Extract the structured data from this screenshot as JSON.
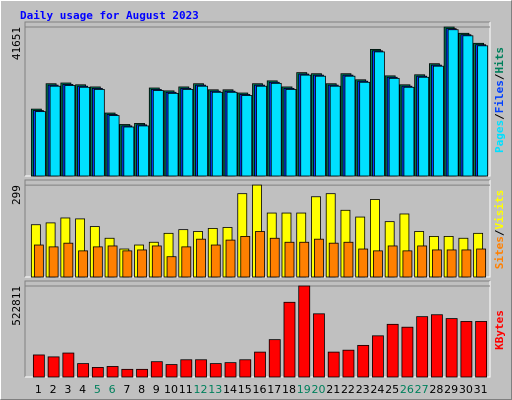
{
  "legend_separator": "/",
  "chart_data": [
    {
      "type": "bar",
      "title": "Daily usage for August 2023",
      "title_color": "#0000ff",
      "ylim": [
        0,
        42500
      ],
      "yticks": [
        41651
      ],
      "series": [
        {
          "name": "Hits",
          "color": "#00805c",
          "values": [
            18700,
            25800,
            26000,
            25500,
            24900,
            17600,
            14400,
            14700,
            24600,
            23800,
            24900,
            25800,
            24100,
            24100,
            23200,
            25800,
            26600,
            24900,
            28900,
            28600,
            25800,
            28600,
            26900,
            35400,
            28000,
            25500,
            28300,
            31400,
            41651,
            39900,
            37100
          ]
        },
        {
          "name": "Files",
          "color": "#0040ff",
          "values": [
            18300,
            25400,
            25600,
            25100,
            24500,
            17200,
            14000,
            14300,
            24200,
            23400,
            24500,
            25400,
            23700,
            23700,
            22800,
            25400,
            26200,
            24500,
            28500,
            28200,
            25400,
            28200,
            26500,
            35000,
            27600,
            25100,
            27900,
            31000,
            41200,
            39500,
            36700
          ]
        },
        {
          "name": "Pages",
          "color": "#00e0ff",
          "values": [
            18000,
            25100,
            25300,
            24800,
            24200,
            16900,
            13700,
            14000,
            23900,
            23100,
            24200,
            25100,
            23400,
            23400,
            22500,
            25100,
            25900,
            24200,
            28200,
            27900,
            25100,
            27900,
            26200,
            34700,
            27300,
            24800,
            27600,
            30700,
            40900,
            39200,
            36400
          ]
        }
      ]
    },
    {
      "type": "bar",
      "ylim": [
        0,
        309
      ],
      "yticks": [
        299
      ],
      "series": [
        {
          "name": "Visits",
          "color": "#ffff00",
          "values": [
            170,
            176,
            192,
            189,
            164,
            126,
            91,
            104,
            113,
            142,
            154,
            148,
            158,
            161,
            271,
            299,
            208,
            208,
            208,
            261,
            271,
            217,
            195,
            252,
            180,
            205,
            148,
            132,
            132,
            126,
            142
          ]
        },
        {
          "name": "Sites",
          "color": "#ff8000",
          "values": [
            104,
            98,
            110,
            85,
            98,
            101,
            85,
            88,
            101,
            66,
            98,
            123,
            104,
            120,
            132,
            148,
            126,
            113,
            113,
            123,
            110,
            113,
            91,
            85,
            101,
            85,
            101,
            88,
            88,
            88,
            91
          ]
        }
      ]
    },
    {
      "type": "bar",
      "ylim": [
        0,
        540000
      ],
      "yticks": [
        522811
      ],
      "categories": [
        "1",
        "2",
        "3",
        "4",
        "5",
        "6",
        "7",
        "8",
        "9",
        "10",
        "11",
        "12",
        "13",
        "14",
        "15",
        "16",
        "17",
        "18",
        "19",
        "20",
        "21",
        "22",
        "23",
        "24",
        "25",
        "26",
        "27",
        "28",
        "29",
        "30",
        "31"
      ],
      "category_colors": [
        "#000000",
        "#000000",
        "#000000",
        "#000000",
        "#00805c",
        "#00805c",
        "#000000",
        "#000000",
        "#000000",
        "#000000",
        "#000000",
        "#00805c",
        "#00805c",
        "#000000",
        "#000000",
        "#000000",
        "#000000",
        "#000000",
        "#00805c",
        "#00805c",
        "#000000",
        "#000000",
        "#000000",
        "#000000",
        "#000000",
        "#00805c",
        "#00805c",
        "#000000",
        "#000000",
        "#000000",
        "#000000"
      ],
      "series": [
        {
          "name": "KBytes",
          "color": "#ff0000",
          "values": [
            126600,
            115600,
            137600,
            77000,
            55000,
            60500,
            44000,
            44000,
            88000,
            71500,
            99000,
            99000,
            77000,
            82500,
            99000,
            143000,
            214600,
            429200,
            522811,
            363000,
            143000,
            154000,
            181600,
            236600,
            302600,
            286100,
            346700,
            357700,
            335600,
            319000,
            319000
          ]
        }
      ]
    }
  ]
}
